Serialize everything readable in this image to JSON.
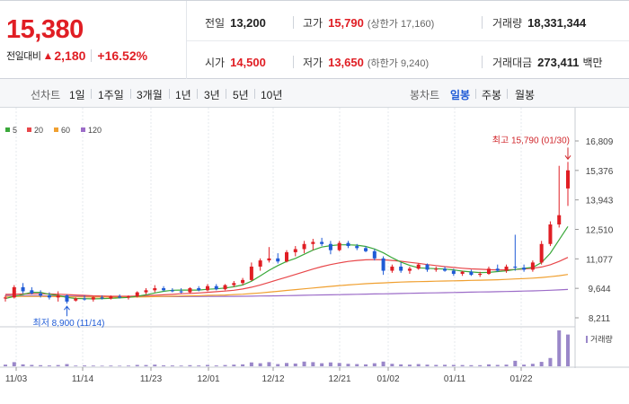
{
  "summary": {
    "price": "15,380",
    "change_label": "전일대비",
    "change_arrow": "▲",
    "change_amount": "2,180",
    "change_pct": "+16.52%"
  },
  "stats": {
    "prev_close": {
      "label": "전일",
      "value": "13,200"
    },
    "high": {
      "label": "고가",
      "value": "15,790",
      "sub": "(상한가 17,160)"
    },
    "volume": {
      "label": "거래량",
      "value": "18,331,344"
    },
    "open": {
      "label": "시가",
      "value": "14,500"
    },
    "low": {
      "label": "저가",
      "value": "13,650",
      "sub": "(하한가 9,240)"
    },
    "amount": {
      "label": "거래대금",
      "value": "273,411",
      "unit": "백만"
    }
  },
  "toolbar": {
    "line_label": "선차트",
    "line_periods": [
      "1일",
      "1주일",
      "3개월",
      "1년",
      "3년",
      "5년",
      "10년"
    ],
    "candle_label": "봉차트",
    "candle_periods": [
      "일봉",
      "주봉",
      "월봉"
    ],
    "candle_active": "일봉"
  },
  "colors": {
    "up": "#e01e24",
    "down": "#1f5bd6",
    "ma5": "#3aa83a",
    "ma20": "#e8474a",
    "ma60": "#f0a030",
    "ma120": "#9c6cc8",
    "volume": "#9a87c9"
  },
  "chart_data": {
    "type": "candlestick",
    "legend": [
      {
        "name": "5",
        "color": "#3aa83a"
      },
      {
        "name": "20",
        "color": "#e8474a"
      },
      {
        "name": "60",
        "color": "#f0a030"
      },
      {
        "name": "120",
        "color": "#9c6cc8"
      }
    ],
    "volume_label": "거래량",
    "y_ticks": [
      "16,809",
      "15,376",
      "13,943",
      "12,510",
      "11,077",
      "9,644",
      "8,211"
    ],
    "ylim": [
      8211,
      16809
    ],
    "x_ticks": [
      "11/03",
      "11/14",
      "11/23",
      "12/01",
      "12/12",
      "12/21",
      "01/02",
      "01/11",
      "01/22"
    ],
    "annotation_high": "최고 15,790 (01/30)",
    "annotation_low": "최저 8,900 (11/14)",
    "candles": [
      {
        "o": 9150,
        "h": 9300,
        "l": 9000,
        "c": 9200
      },
      {
        "o": 9200,
        "h": 9800,
        "l": 9150,
        "c": 9700
      },
      {
        "o": 9700,
        "h": 9900,
        "l": 9400,
        "c": 9500
      },
      {
        "o": 9550,
        "h": 9700,
        "l": 9350,
        "c": 9400
      },
      {
        "o": 9400,
        "h": 9550,
        "l": 9200,
        "c": 9300
      },
      {
        "o": 9300,
        "h": 9450,
        "l": 9100,
        "c": 9200
      },
      {
        "o": 9200,
        "h": 9500,
        "l": 9000,
        "c": 9300
      },
      {
        "o": 9300,
        "h": 9350,
        "l": 8900,
        "c": 9000
      },
      {
        "o": 9050,
        "h": 9200,
        "l": 9000,
        "c": 9150
      },
      {
        "o": 9150,
        "h": 9300,
        "l": 9050,
        "c": 9100
      },
      {
        "o": 9100,
        "h": 9250,
        "l": 9000,
        "c": 9200
      },
      {
        "o": 9200,
        "h": 9300,
        "l": 9100,
        "c": 9150
      },
      {
        "o": 9150,
        "h": 9300,
        "l": 9100,
        "c": 9250
      },
      {
        "o": 9250,
        "h": 9350,
        "l": 9150,
        "c": 9200
      },
      {
        "o": 9200,
        "h": 9300,
        "l": 9100,
        "c": 9250
      },
      {
        "o": 9250,
        "h": 9500,
        "l": 9200,
        "c": 9450
      },
      {
        "o": 9450,
        "h": 9650,
        "l": 9350,
        "c": 9550
      },
      {
        "o": 9550,
        "h": 9800,
        "l": 9450,
        "c": 9650
      },
      {
        "o": 9650,
        "h": 9750,
        "l": 9500,
        "c": 9550
      },
      {
        "o": 9550,
        "h": 9650,
        "l": 9450,
        "c": 9500
      },
      {
        "o": 9500,
        "h": 9650,
        "l": 9400,
        "c": 9450
      },
      {
        "o": 9450,
        "h": 9700,
        "l": 9400,
        "c": 9650
      },
      {
        "o": 9650,
        "h": 9750,
        "l": 9500,
        "c": 9550
      },
      {
        "o": 9550,
        "h": 9850,
        "l": 9500,
        "c": 9750
      },
      {
        "o": 9750,
        "h": 9850,
        "l": 9550,
        "c": 9600
      },
      {
        "o": 9600,
        "h": 9850,
        "l": 9550,
        "c": 9800
      },
      {
        "o": 9800,
        "h": 10000,
        "l": 9700,
        "c": 9900
      },
      {
        "o": 9900,
        "h": 10150,
        "l": 9800,
        "c": 10050
      },
      {
        "o": 10050,
        "h": 10900,
        "l": 10000,
        "c": 10700
      },
      {
        "o": 10700,
        "h": 11100,
        "l": 10500,
        "c": 11000
      },
      {
        "o": 11000,
        "h": 11650,
        "l": 10900,
        "c": 11100
      },
      {
        "o": 11100,
        "h": 11350,
        "l": 10850,
        "c": 10950
      },
      {
        "o": 10950,
        "h": 11500,
        "l": 10900,
        "c": 11400
      },
      {
        "o": 11400,
        "h": 11700,
        "l": 11200,
        "c": 11550
      },
      {
        "o": 11550,
        "h": 11950,
        "l": 11350,
        "c": 11800
      },
      {
        "o": 11800,
        "h": 12050,
        "l": 11500,
        "c": 11900
      },
      {
        "o": 11900,
        "h": 12100,
        "l": 11700,
        "c": 11800
      },
      {
        "o": 11800,
        "h": 11950,
        "l": 11300,
        "c": 11500
      },
      {
        "o": 11500,
        "h": 11950,
        "l": 11450,
        "c": 11850
      },
      {
        "o": 11850,
        "h": 11950,
        "l": 11600,
        "c": 11700
      },
      {
        "o": 11700,
        "h": 11800,
        "l": 11500,
        "c": 11600
      },
      {
        "o": 11600,
        "h": 11700,
        "l": 11400,
        "c": 11450
      },
      {
        "o": 11450,
        "h": 11550,
        "l": 11000,
        "c": 11100
      },
      {
        "o": 11100,
        "h": 11200,
        "l": 10300,
        "c": 10500
      },
      {
        "o": 10500,
        "h": 10800,
        "l": 10400,
        "c": 10700
      },
      {
        "o": 10700,
        "h": 10900,
        "l": 10400,
        "c": 10500
      },
      {
        "o": 10500,
        "h": 10700,
        "l": 10350,
        "c": 10600
      },
      {
        "o": 10600,
        "h": 10850,
        "l": 10550,
        "c": 10800
      },
      {
        "o": 10800,
        "h": 10850,
        "l": 10450,
        "c": 10550
      },
      {
        "o": 10550,
        "h": 10700,
        "l": 10450,
        "c": 10600
      },
      {
        "o": 10600,
        "h": 10700,
        "l": 10450,
        "c": 10500
      },
      {
        "o": 10500,
        "h": 10600,
        "l": 10250,
        "c": 10350
      },
      {
        "o": 10350,
        "h": 10500,
        "l": 10250,
        "c": 10450
      },
      {
        "o": 10450,
        "h": 10550,
        "l": 10250,
        "c": 10300
      },
      {
        "o": 10300,
        "h": 10450,
        "l": 10200,
        "c": 10350
      },
      {
        "o": 10350,
        "h": 10700,
        "l": 10300,
        "c": 10600
      },
      {
        "o": 10600,
        "h": 10800,
        "l": 10450,
        "c": 10500
      },
      {
        "o": 10500,
        "h": 10800,
        "l": 10400,
        "c": 10700
      },
      {
        "o": 10700,
        "h": 12250,
        "l": 10500,
        "c": 10650
      },
      {
        "o": 10650,
        "h": 10800,
        "l": 10450,
        "c": 10550
      },
      {
        "o": 10550,
        "h": 11000,
        "l": 10450,
        "c": 10900
      },
      {
        "o": 10900,
        "h": 11950,
        "l": 10800,
        "c": 11800
      },
      {
        "o": 11800,
        "h": 12900,
        "l": 11700,
        "c": 12750
      },
      {
        "o": 12750,
        "h": 15600,
        "l": 12600,
        "c": 13200
      },
      {
        "o": 14500,
        "h": 15790,
        "l": 13650,
        "c": 15380
      }
    ],
    "volume": [
      12,
      30,
      14,
      10,
      8,
      6,
      9,
      16,
      5,
      6,
      5,
      4,
      5,
      4,
      5,
      10,
      9,
      12,
      7,
      6,
      5,
      8,
      6,
      10,
      6,
      9,
      12,
      14,
      28,
      22,
      30,
      16,
      24,
      20,
      34,
      30,
      22,
      28,
      24,
      18,
      16,
      14,
      22,
      34,
      18,
      14,
      12,
      16,
      12,
      10,
      11,
      10,
      9,
      8,
      8,
      14,
      10,
      12,
      40,
      12,
      18,
      32,
      60,
      260,
      230
    ],
    "ma5": [
      9150,
      9250,
      9350,
      9450,
      9450,
      9350,
      9300,
      9200,
      9150,
      9140,
      9130,
      9140,
      9160,
      9180,
      9200,
      9260,
      9330,
      9420,
      9500,
      9550,
      9560,
      9560,
      9560,
      9600,
      9620,
      9660,
      9720,
      9810,
      9990,
      10250,
      10520,
      10750,
      10950,
      11100,
      11300,
      11500,
      11650,
      11720,
      11760,
      11760,
      11740,
      11680,
      11560,
      11370,
      11130,
      10920,
      10760,
      10640,
      10620,
      10600,
      10580,
      10540,
      10480,
      10440,
      10410,
      10420,
      10460,
      10500,
      10560,
      10620,
      10660,
      10900,
      11350,
      12000,
      12650
    ],
    "ma20": [
      9350,
      9360,
      9370,
      9380,
      9380,
      9370,
      9360,
      9340,
      9320,
      9300,
      9280,
      9270,
      9260,
      9260,
      9260,
      9270,
      9290,
      9310,
      9330,
      9350,
      9380,
      9400,
      9420,
      9450,
      9480,
      9510,
      9550,
      9610,
      9700,
      9810,
      9930,
      10060,
      10190,
      10320,
      10450,
      10580,
      10700,
      10800,
      10880,
      10950,
      11000,
      11030,
      11040,
      11030,
      11000,
      10960,
      10910,
      10860,
      10800,
      10750,
      10700,
      10660,
      10620,
      10590,
      10570,
      10550,
      10540,
      10540,
      10560,
      10590,
      10620,
      10680,
      10790,
      10950,
      11150
    ],
    "ma60": [
      9250,
      9250,
      9250,
      9250,
      9250,
      9245,
      9240,
      9235,
      9230,
      9225,
      9220,
      9220,
      9220,
      9220,
      9220,
      9225,
      9230,
      9240,
      9250,
      9260,
      9270,
      9280,
      9290,
      9300,
      9310,
      9320,
      9340,
      9360,
      9390,
      9420,
      9460,
      9500,
      9540,
      9580,
      9620,
      9660,
      9700,
      9740,
      9780,
      9810,
      9840,
      9870,
      9890,
      9910,
      9930,
      9950,
      9960,
      9970,
      9980,
      9990,
      10000,
      10010,
      10020,
      10030,
      10040,
      10050,
      10060,
      10080,
      10100,
      10120,
      10140,
      10170,
      10210,
      10260,
      10320
    ],
    "ma120": [
      9300,
      9295,
      9290,
      9285,
      9280,
      9275,
      9270,
      9265,
      9260,
      9255,
      9250,
      9248,
      9246,
      9244,
      9242,
      9240,
      9240,
      9240,
      9240,
      9240,
      9242,
      9244,
      9246,
      9248,
      9250,
      9253,
      9256,
      9260,
      9265,
      9270,
      9276,
      9282,
      9290,
      9298,
      9306,
      9314,
      9322,
      9330,
      9338,
      9346,
      9354,
      9362,
      9370,
      9378,
      9386,
      9394,
      9402,
      9410,
      9418,
      9426,
      9434,
      9442,
      9450,
      9458,
      9466,
      9474,
      9482,
      9490,
      9500,
      9510,
      9520,
      9535,
      9550,
      9570,
      9590
    ]
  }
}
